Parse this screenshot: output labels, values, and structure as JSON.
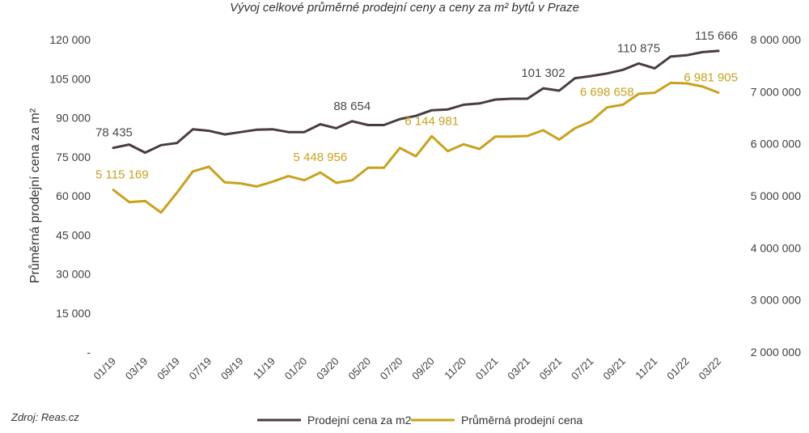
{
  "chart_data": {
    "type": "line",
    "title": "Vývoj celkové průměrné prodejní ceny  a ceny za m² bytů v Praze",
    "ylabel": "Průměrná prodejní cena za m²",
    "source": "Zdroj: Reas.cz",
    "x_tick_labels": [
      "01/19",
      "03/19",
      "05/19",
      "07/19",
      "09/19",
      "11/19",
      "01/20",
      "03/20",
      "05/20",
      "07/20",
      "09/20",
      "11/20",
      "01/21",
      "03/21",
      "05/21",
      "07/21",
      "09/21",
      "11/21",
      "01/22",
      "03/22"
    ],
    "left_axis": {
      "ylim": [
        0,
        120000
      ],
      "ticks": [
        0,
        15000,
        30000,
        45000,
        60000,
        75000,
        90000,
        105000,
        120000
      ],
      "tick_labels": [
        "-",
        "15 000",
        "30 000",
        "45 000",
        "60 000",
        "75 000",
        "90 000",
        "105 000",
        "120 000"
      ]
    },
    "right_axis": {
      "ylim": [
        2000000,
        8000000
      ],
      "ticks": [
        2000000,
        3000000,
        4000000,
        5000000,
        6000000,
        7000000,
        8000000
      ],
      "tick_labels": [
        "2 000 000",
        "3 000 000",
        "4 000 000",
        "5 000 000",
        "6 000 000",
        "7 000 000",
        "8 000 000"
      ]
    },
    "x": [
      "01/19",
      "02/19",
      "03/19",
      "04/19",
      "05/19",
      "06/19",
      "07/19",
      "08/19",
      "09/19",
      "10/19",
      "11/19",
      "12/19",
      "01/20",
      "02/20",
      "03/20",
      "04/20",
      "05/20",
      "06/20",
      "07/20",
      "08/20",
      "09/20",
      "10/20",
      "11/20",
      "12/20",
      "01/21",
      "02/21",
      "03/21",
      "04/21",
      "05/21",
      "06/21",
      "07/21",
      "08/21",
      "09/21",
      "10/21",
      "11/21",
      "12/21",
      "01/22",
      "02/22",
      "03/22"
    ],
    "series": [
      {
        "name": "Prodejní cena za m2",
        "axis": "left",
        "color": "#4a3c44",
        "values": [
          78435,
          79700,
          76600,
          79500,
          80300,
          85600,
          85000,
          83600,
          84500,
          85400,
          85600,
          84500,
          84500,
          87500,
          86000,
          88654,
          87200,
          87200,
          89500,
          90700,
          92900,
          93200,
          95000,
          95500,
          97000,
          97300,
          97300,
          101302,
          100400,
          105200,
          106000,
          107000,
          108400,
          110875,
          109000,
          113500,
          114000,
          115200,
          115666
        ]
      },
      {
        "name": "Průměrná prodejní cena",
        "axis": "right",
        "color": "#c9a21c",
        "values": [
          5115169,
          4880000,
          4900000,
          4680000,
          5060000,
          5470000,
          5560000,
          5260000,
          5240000,
          5180000,
          5270000,
          5380000,
          5300000,
          5448956,
          5250000,
          5300000,
          5540000,
          5540000,
          5920000,
          5760000,
          6144981,
          5860000,
          5990000,
          5900000,
          6140000,
          6140000,
          6150000,
          6260000,
          6080000,
          6300000,
          6430000,
          6698658,
          6750000,
          6960000,
          6980000,
          7170000,
          7160000,
          7100000,
          6981905
        ]
      }
    ],
    "annotations": [
      {
        "series": 0,
        "index": 0,
        "text": "78 435"
      },
      {
        "series": 0,
        "index": 15,
        "text": "88 654"
      },
      {
        "series": 0,
        "index": 27,
        "text": "101 302"
      },
      {
        "series": 0,
        "index": 33,
        "text": "110 875"
      },
      {
        "series": 0,
        "index": 38,
        "text": "115 666"
      },
      {
        "series": 1,
        "index": 0,
        "text": "5 115 169"
      },
      {
        "series": 1,
        "index": 13,
        "text": "5 448 956"
      },
      {
        "series": 1,
        "index": 20,
        "text": "6 144 981"
      },
      {
        "series": 1,
        "index": 31,
        "text": "6 698 658"
      },
      {
        "series": 1,
        "index": 38,
        "text": "6 981 905"
      }
    ],
    "legend_position": "bottom",
    "grid": false
  }
}
